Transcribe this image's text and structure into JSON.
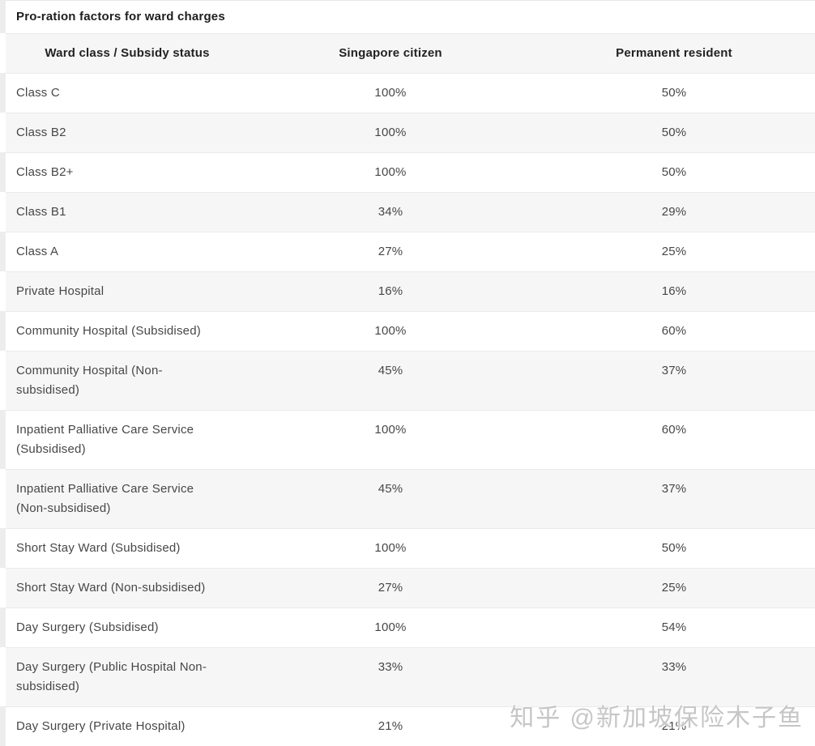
{
  "title": "Pro-ration factors for ward charges",
  "watermark": "知乎 @新加坡保险木子鱼",
  "colors": {
    "row_alt_background": "#f6f6f6",
    "row_border": "#eaeaea",
    "watermark_text": "#c6c6c6"
  },
  "table": {
    "columns": {
      "ward_class": "Ward class / Subsidy status",
      "citizen": "Singapore citizen",
      "pr": "Permanent resident"
    },
    "rows": [
      {
        "label": "Class C",
        "citizen": "100%",
        "pr": "50%"
      },
      {
        "label": "Class B2",
        "citizen": "100%",
        "pr": "50%"
      },
      {
        "label": "Class B2+",
        "citizen": "100%",
        "pr": "50%"
      },
      {
        "label": "Class B1",
        "citizen": "34%",
        "pr": "29%"
      },
      {
        "label": "Class A",
        "citizen": "27%",
        "pr": "25%"
      },
      {
        "label": "Private Hospital",
        "citizen": "16%",
        "pr": "16%"
      },
      {
        "label": "Community Hospital (Subsidised)",
        "citizen": "100%",
        "pr": "60%"
      },
      {
        "label": "Community Hospital (Non-subsidised)",
        "citizen": "45%",
        "pr": "37%"
      },
      {
        "label": "Inpatient Palliative Care Service (Subsidised)",
        "citizen": "100%",
        "pr": "60%"
      },
      {
        "label": "Inpatient Palliative Care Service (Non-subsidised)",
        "citizen": "45%",
        "pr": "37%"
      },
      {
        "label": "Short Stay Ward (Subsidised)",
        "citizen": "100%",
        "pr": "50%"
      },
      {
        "label": "Short Stay Ward (Non-subsidised)",
        "citizen": "27%",
        "pr": "25%"
      },
      {
        "label": "Day Surgery (Subsidised)",
        "citizen": "100%",
        "pr": "54%"
      },
      {
        "label": "Day Surgery (Public Hospital Non-subsidised)",
        "citizen": "33%",
        "pr": "33%"
      },
      {
        "label": "Day Surgery (Private Hospital)",
        "citizen": "21%",
        "pr": "21%"
      }
    ]
  }
}
